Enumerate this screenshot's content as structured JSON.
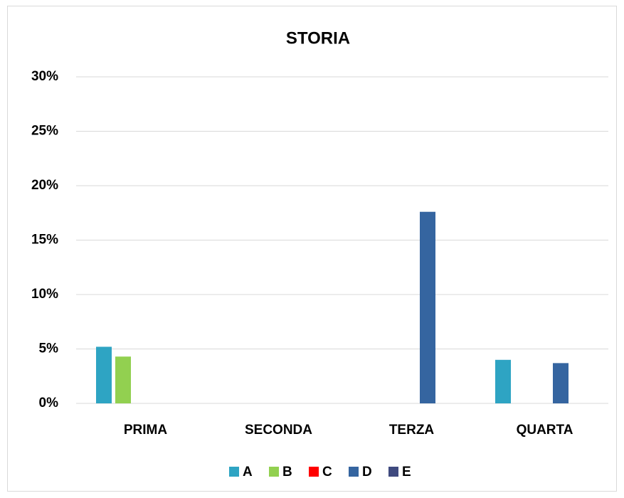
{
  "chart_data": {
    "type": "bar",
    "title": "STORIA",
    "categories": [
      "PRIMA",
      "SECONDA",
      "TERZA",
      "QUARTA"
    ],
    "series": [
      {
        "name": "A",
        "color": "#2ea4c3",
        "values": [
          5.2,
          0,
          0,
          4.0
        ]
      },
      {
        "name": "B",
        "color": "#92d050",
        "values": [
          4.3,
          0,
          0,
          0
        ]
      },
      {
        "name": "C",
        "color": "#ff0000",
        "values": [
          0,
          0,
          0,
          0
        ]
      },
      {
        "name": "D",
        "color": "#3565a0",
        "values": [
          0,
          0,
          17.6,
          3.7
        ]
      },
      {
        "name": "E",
        "color": "#3f4a7f",
        "values": [
          0,
          0,
          0,
          0
        ]
      }
    ],
    "ylim": [
      0,
      30
    ],
    "yticks": [
      {
        "value": 0,
        "label": "0%"
      },
      {
        "value": 5,
        "label": "5%"
      },
      {
        "value": 10,
        "label": "10%"
      },
      {
        "value": 15,
        "label": "15%"
      },
      {
        "value": 20,
        "label": "20%"
      },
      {
        "value": 25,
        "label": "25%"
      },
      {
        "value": 30,
        "label": "30%"
      }
    ],
    "grid": true,
    "legend": "bottom"
  }
}
